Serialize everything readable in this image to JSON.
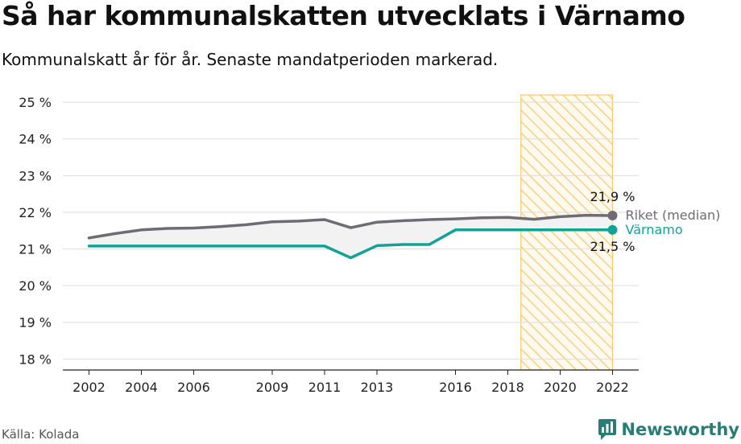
{
  "title": "Så har kommunalskatten utvecklats i Värnamo",
  "subtitle": "Kommunalskatt år för år. Senaste mandatperioden markerad.",
  "source": "Källa: Kolada",
  "brand": "Newsworthy",
  "colors": {
    "riket": "#6d6b73",
    "varnamo": "#14a196",
    "highlight": "#f7c86b",
    "grid": "#dddddd",
    "fill_between": "#f2f2f2"
  },
  "chart_data": {
    "type": "line",
    "title": "Så har kommunalskatten utvecklats i Värnamo",
    "subtitle": "Kommunalskatt år för år. Senaste mandatperioden markerad.",
    "xlabel": "",
    "ylabel": "",
    "ylim": [
      17.7,
      25.2
    ],
    "xlim": [
      2001,
      2023
    ],
    "yticks": [
      18,
      19,
      20,
      21,
      22,
      23,
      24,
      25
    ],
    "ytick_labels": [
      "18 %",
      "19 %",
      "20 %",
      "21 %",
      "22 %",
      "23 %",
      "24 %",
      "25 %"
    ],
    "xticks": [
      2002,
      2004,
      2006,
      2009,
      2011,
      2013,
      2016,
      2018,
      2020,
      2022
    ],
    "xtick_labels": [
      "2002",
      "2004",
      "2006",
      "2009",
      "2011",
      "2013",
      "2016",
      "2018",
      "2020",
      "2022"
    ],
    "highlight_period": [
      2018.5,
      2022
    ],
    "grid": true,
    "legend": "direct labels at line ends",
    "series": [
      {
        "name": "Riket (median)",
        "color": "#6d6b73",
        "x": [
          2002,
          2003,
          2004,
          2005,
          2006,
          2007,
          2008,
          2009,
          2010,
          2011,
          2012,
          2013,
          2014,
          2015,
          2016,
          2017,
          2018,
          2019,
          2020,
          2021,
          2022
        ],
        "values": [
          21.3,
          21.42,
          21.52,
          21.56,
          21.57,
          21.61,
          21.66,
          21.74,
          21.76,
          21.8,
          21.58,
          21.73,
          21.77,
          21.8,
          21.82,
          21.85,
          21.86,
          21.81,
          21.88,
          21.92,
          21.91
        ],
        "end_label": "21,9 %"
      },
      {
        "name": "Värnamo",
        "color": "#14a196",
        "x": [
          2002,
          2003,
          2004,
          2005,
          2006,
          2007,
          2008,
          2009,
          2010,
          2011,
          2012,
          2013,
          2014,
          2015,
          2016,
          2017,
          2018,
          2019,
          2020,
          2021,
          2022
        ],
        "values": [
          21.08,
          21.08,
          21.08,
          21.08,
          21.08,
          21.08,
          21.08,
          21.08,
          21.08,
          21.08,
          20.76,
          21.09,
          21.12,
          21.12,
          21.52,
          21.52,
          21.52,
          21.52,
          21.52,
          21.52,
          21.52
        ],
        "end_label": "21,5 %"
      }
    ]
  }
}
